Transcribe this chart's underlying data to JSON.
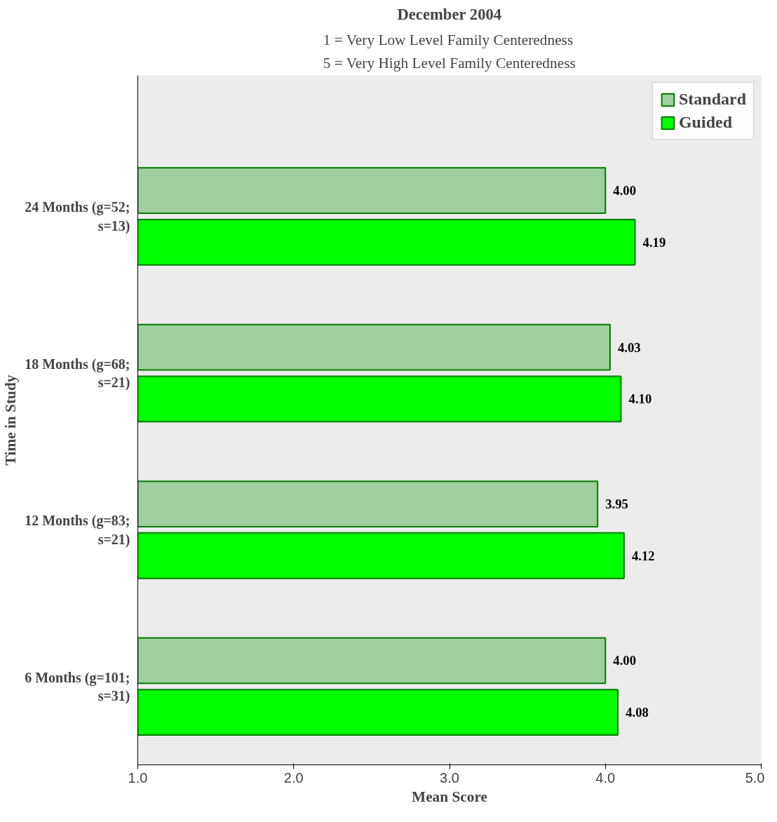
{
  "chart_data": {
    "type": "bar",
    "orientation": "horizontal",
    "title": "December 2004",
    "subtitle": "1 = Very Low Level Family Centeredness\n5 = Very High Level Family Centeredness",
    "xlabel": "Mean Score",
    "ylabel": "Time in Study",
    "categories": [
      "24 Months (g=52; s=13)",
      "18 Months (g=68; s=21)",
      "12 Months (g=83; s=21)",
      "6 Months (g=101; s=31)"
    ],
    "series": [
      {
        "name": "Standard",
        "color": "#9fcf9f",
        "values": [
          4.0,
          4.03,
          3.95,
          4.0
        ],
        "value_labels": [
          "4.00",
          "4.03",
          "3.95",
          "4.00"
        ]
      },
      {
        "name": "Guided",
        "color": "#00ff00",
        "values": [
          4.19,
          4.1,
          4.12,
          4.08
        ],
        "value_labels": [
          "4.19",
          "4.10",
          "4.12",
          "4.08"
        ]
      }
    ],
    "xlim": [
      1,
      5
    ],
    "xticks": [
      {
        "value": 1,
        "label": "1.0"
      },
      {
        "value": 2,
        "label": "2.0"
      },
      {
        "value": 3,
        "label": "3.0"
      },
      {
        "value": 4,
        "label": "4.0"
      },
      {
        "value": 5,
        "label": "5.0"
      }
    ],
    "grid": false,
    "legend": "top right"
  }
}
